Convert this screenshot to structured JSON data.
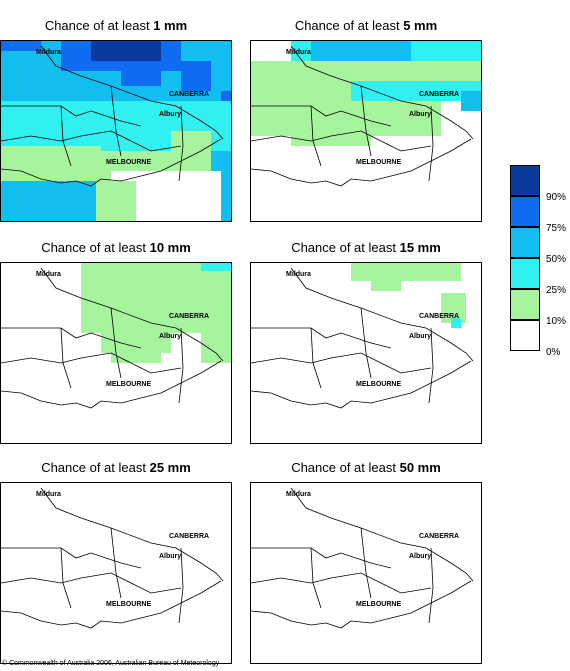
{
  "panels": [
    {
      "prefix": "Chance of at least ",
      "amount": "1 mm",
      "level": 0
    },
    {
      "prefix": "Chance of at least ",
      "amount": "5 mm",
      "level": 1
    },
    {
      "prefix": "Chance of at least ",
      "amount": "10 mm",
      "level": 2
    },
    {
      "prefix": "Chance of at least ",
      "amount": "15 mm",
      "level": 3
    },
    {
      "prefix": "Chance of at least ",
      "amount": "25 mm",
      "level": 4
    },
    {
      "prefix": "Chance of at least ",
      "amount": "50 mm",
      "level": 5
    }
  ],
  "cities": {
    "mildura": "Mildura",
    "canberra": "CANBERRA",
    "albury": "Albury",
    "melbourne": "MELBOURNE"
  },
  "legend": {
    "labels": [
      "90%",
      "75%",
      "50%",
      "25%",
      "10%",
      "0%"
    ],
    "colors": [
      "#0a3a9e",
      "#0f6bf0",
      "#12bdf0",
      "#30f0f0",
      "#a6f59e",
      "#ffffff"
    ]
  },
  "copyright": "© Commonwealth of Australia 2006, Australian Bureau of Meteorology"
}
